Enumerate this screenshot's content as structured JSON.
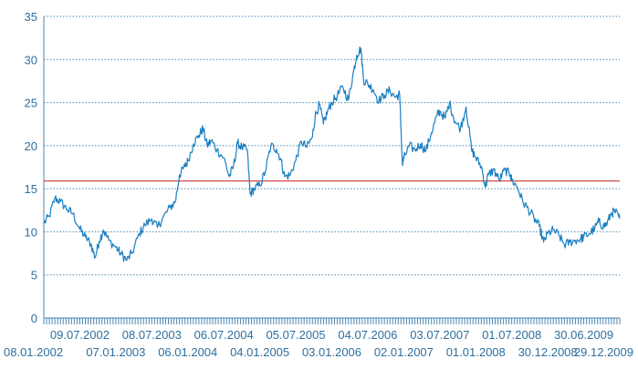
{
  "chart_data": {
    "type": "line",
    "title": "",
    "xlabel": "",
    "ylabel": "",
    "ylim": [
      0,
      35
    ],
    "yticks": [
      0,
      5,
      10,
      15,
      20,
      25,
      30,
      35
    ],
    "grid": "horizontal-dotted",
    "legend": "none",
    "colors": {
      "series": "#1a7fc1",
      "reference": "#d04b4b",
      "axis": "#4a86b3",
      "text": "#2e6f9e"
    },
    "reference_line": 15.9,
    "xticks_top": [
      "09.07.2002",
      "08.07.2003",
      "06.07.2004",
      "05.07.2005",
      "04.07.2006",
      "03.07.2007",
      "01.07.2008",
      "30.06.2009"
    ],
    "xticks_bottom": [
      "08.01.2002",
      "07.01.2003",
      "06.01.2004",
      "04.01.2005",
      "03.01.2006",
      "02.01.2007",
      "01.01.2008",
      "30.12.2008",
      "29.12.2009"
    ],
    "x_start": "08.01.2002",
    "x_end": "29.12.2009",
    "series": [
      {
        "points": [
          [
            "2002-01-08",
            11.0
          ],
          [
            "2002-02-05",
            11.8
          ],
          [
            "2002-03-05",
            13.9
          ],
          [
            "2002-04-02",
            13.5
          ],
          [
            "2002-05-07",
            12.6
          ],
          [
            "2002-06-04",
            12.1
          ],
          [
            "2002-07-09",
            10.3
          ],
          [
            "2002-08-06",
            9.4
          ],
          [
            "2002-09-03",
            8.6
          ],
          [
            "2002-09-24",
            7.0
          ],
          [
            "2002-10-15",
            8.9
          ],
          [
            "2002-11-05",
            10.2
          ],
          [
            "2002-12-03",
            9.0
          ],
          [
            "2003-01-07",
            8.2
          ],
          [
            "2003-02-04",
            7.4
          ],
          [
            "2003-03-04",
            6.7
          ],
          [
            "2003-04-01",
            7.6
          ],
          [
            "2003-05-06",
            9.8
          ],
          [
            "2003-06-03",
            10.8
          ],
          [
            "2003-07-08",
            11.5
          ],
          [
            "2003-08-05",
            10.5
          ],
          [
            "2003-09-02",
            11.6
          ],
          [
            "2003-10-07",
            12.8
          ],
          [
            "2003-11-04",
            13.5
          ],
          [
            "2003-11-25",
            16.6
          ],
          [
            "2003-12-23",
            17.6
          ],
          [
            "2004-01-06",
            18.2
          ],
          [
            "2004-02-03",
            20.2
          ],
          [
            "2004-03-02",
            21.2
          ],
          [
            "2004-03-23",
            22.0
          ],
          [
            "2004-04-13",
            20.0
          ],
          [
            "2004-05-04",
            20.6
          ],
          [
            "2004-06-01",
            19.5
          ],
          [
            "2004-07-06",
            18.6
          ],
          [
            "2004-08-03",
            16.4
          ],
          [
            "2004-08-24",
            17.6
          ],
          [
            "2004-09-14",
            20.3
          ],
          [
            "2004-10-05",
            19.8
          ],
          [
            "2004-11-02",
            19.5
          ],
          [
            "2004-11-16",
            14.4
          ],
          [
            "2004-12-07",
            15.0
          ],
          [
            "2005-01-04",
            15.4
          ],
          [
            "2005-02-01",
            17.0
          ],
          [
            "2005-03-01",
            20.0
          ],
          [
            "2005-03-29",
            19.6
          ],
          [
            "2005-04-19",
            18.5
          ],
          [
            "2005-05-10",
            16.4
          ],
          [
            "2005-06-07",
            16.6
          ],
          [
            "2005-07-05",
            18.3
          ],
          [
            "2005-08-02",
            20.5
          ],
          [
            "2005-08-30",
            19.8
          ],
          [
            "2005-09-27",
            21.0
          ],
          [
            "2005-10-11",
            23.4
          ],
          [
            "2005-11-01",
            24.8
          ],
          [
            "2005-11-22",
            22.5
          ],
          [
            "2005-12-13",
            24.0
          ],
          [
            "2006-01-03",
            25.0
          ],
          [
            "2006-01-31",
            25.8
          ],
          [
            "2006-02-28",
            26.8
          ],
          [
            "2006-03-28",
            25.3
          ],
          [
            "2006-04-18",
            28.0
          ],
          [
            "2006-05-09",
            30.5
          ],
          [
            "2006-05-30",
            31.3
          ],
          [
            "2006-06-13",
            27.6
          ],
          [
            "2006-07-04",
            27.2
          ],
          [
            "2006-08-01",
            26.5
          ],
          [
            "2006-08-29",
            25.2
          ],
          [
            "2006-09-26",
            25.9
          ],
          [
            "2006-10-24",
            26.4
          ],
          [
            "2006-11-21",
            25.6
          ],
          [
            "2006-12-12",
            26.0
          ],
          [
            "2006-12-26",
            17.8
          ],
          [
            "2007-01-02",
            18.5
          ],
          [
            "2007-01-30",
            20.0
          ],
          [
            "2007-02-27",
            19.5
          ],
          [
            "2007-03-27",
            20.2
          ],
          [
            "2007-04-24",
            19.4
          ],
          [
            "2007-05-22",
            21.5
          ],
          [
            "2007-06-19",
            23.5
          ],
          [
            "2007-07-03",
            24.0
          ],
          [
            "2007-07-31",
            23.2
          ],
          [
            "2007-08-21",
            25.0
          ],
          [
            "2007-09-18",
            22.8
          ],
          [
            "2007-10-16",
            22.0
          ],
          [
            "2007-11-13",
            24.5
          ],
          [
            "2007-12-11",
            19.5
          ],
          [
            "2008-01-01",
            18.6
          ],
          [
            "2008-01-29",
            17.6
          ],
          [
            "2008-02-19",
            15.2
          ],
          [
            "2008-03-04",
            16.6
          ],
          [
            "2008-04-01",
            17.2
          ],
          [
            "2008-04-29",
            16.0
          ],
          [
            "2008-05-27",
            17.2
          ],
          [
            "2008-06-24",
            16.6
          ],
          [
            "2008-07-01",
            16.0
          ],
          [
            "2008-07-29",
            15.2
          ],
          [
            "2008-08-26",
            13.5
          ],
          [
            "2008-09-23",
            12.6
          ],
          [
            "2008-10-21",
            11.6
          ],
          [
            "2008-11-18",
            10.6
          ],
          [
            "2008-12-09",
            8.8
          ],
          [
            "2008-12-30",
            9.8
          ],
          [
            "2009-01-27",
            10.2
          ],
          [
            "2009-02-24",
            9.6
          ],
          [
            "2009-03-24",
            8.5
          ],
          [
            "2009-04-21",
            8.8
          ],
          [
            "2009-05-19",
            9.0
          ],
          [
            "2009-06-16",
            9.2
          ],
          [
            "2009-06-30",
            9.4
          ],
          [
            "2009-07-28",
            9.8
          ],
          [
            "2009-08-25",
            10.4
          ],
          [
            "2009-09-15",
            11.2
          ],
          [
            "2009-10-06",
            10.6
          ],
          [
            "2009-10-27",
            11.0
          ],
          [
            "2009-11-17",
            12.2
          ],
          [
            "2009-12-08",
            12.3
          ],
          [
            "2009-12-29",
            11.5
          ]
        ]
      }
    ]
  }
}
